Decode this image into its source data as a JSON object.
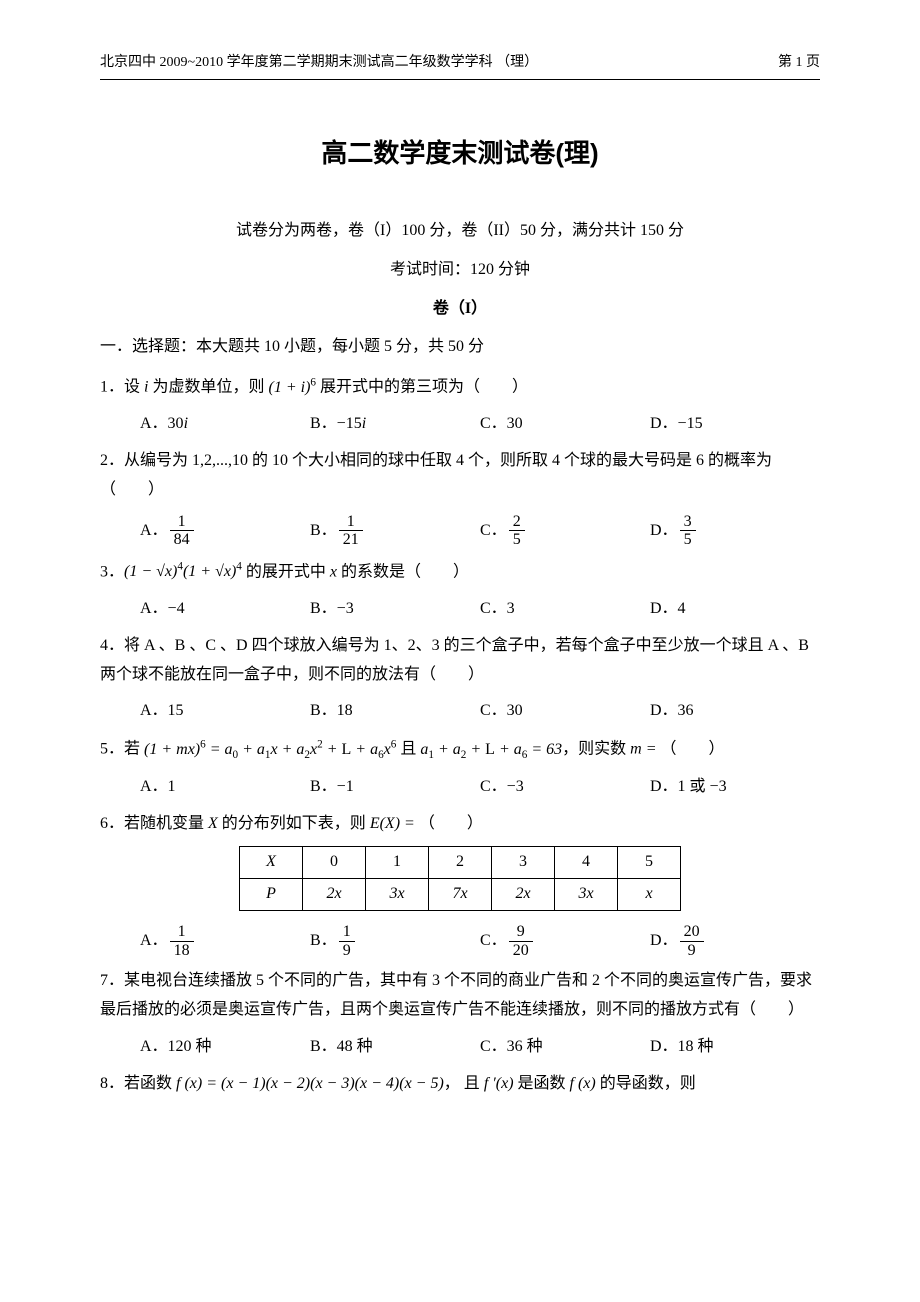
{
  "header": {
    "left": "北京四中 2009~2010 学年度第二学期期末测试高二年级数学学科 （理）",
    "right": "第 1 页"
  },
  "title": "高二数学度末测试卷(理)",
  "subtitle": "试卷分为两卷，卷（I）100 分，卷（II）50 分，满分共计 150 分",
  "exam_time": "考试时间：120 分钟",
  "juan_label": "卷（I）",
  "section1": "一．选择题：本大题共 10 小题，每小题 5 分，共 50 分",
  "q1": {
    "text_before": "1．设 ",
    "text_mid": " 为虚数单位，则 ",
    "text_after": " 展开式中的第三项为（　　）",
    "opts": {
      "A": "A．30",
      "B": "B．−15",
      "C": "C．30",
      "D": "D．−15"
    }
  },
  "q2": {
    "text": "2．从编号为 1,2,...,10 的 10 个大小相同的球中任取 4 个，则所取 4 个球的最大号码是 6 的概率为（　　）",
    "opts": {
      "A": {
        "prefix": "A．",
        "num": "1",
        "den": "84"
      },
      "B": {
        "prefix": "B．",
        "num": "1",
        "den": "21"
      },
      "C": {
        "prefix": "C．",
        "num": "2",
        "den": "5"
      },
      "D": {
        "prefix": "D．",
        "num": "3",
        "den": "5"
      }
    }
  },
  "q3": {
    "text_before": "3．",
    "text_after": " 的展开式中 ",
    "text_end": " 的系数是（　　）",
    "opts": {
      "A": "A．−4",
      "B": "B．−3",
      "C": "C．3",
      "D": "D．4"
    }
  },
  "q4": {
    "text": "4．将 A 、B 、C 、D 四个球放入编号为 1、2、3 的三个盒子中，若每个盒子中至少放一个球且 A 、B 两个球不能放在同一盒子中，则不同的放法有（　　）",
    "opts": {
      "A": "A．15",
      "B": "B．18",
      "C": "C．30",
      "D": "D．36"
    }
  },
  "q5": {
    "text_before": "5．若 ",
    "text_mid": " 且 ",
    "text_after": "，则实数 ",
    "text_end": "（　　）",
    "opts": {
      "A": "A．1",
      "B": "B．−1",
      "C": "C．−3",
      "D": "D．1 或 −3"
    }
  },
  "q6": {
    "text_before": "6．若随机变量 ",
    "text_after": " 的分布列如下表，则 ",
    "text_end": "（　　）",
    "table": {
      "row1": [
        "X",
        "0",
        "1",
        "2",
        "3",
        "4",
        "5"
      ],
      "row2": [
        "P",
        "2x",
        "3x",
        "7x",
        "2x",
        "3x",
        "x"
      ]
    },
    "opts": {
      "A": {
        "prefix": "A．",
        "num": "1",
        "den": "18"
      },
      "B": {
        "prefix": "B．",
        "num": "1",
        "den": "9"
      },
      "C": {
        "prefix": "C．",
        "num": "9",
        "den": "20"
      },
      "D": {
        "prefix": "D．",
        "num": "20",
        "den": "9"
      }
    }
  },
  "q7": {
    "text": "7．某电视台连续播放 5 个不同的广告，其中有 3 个不同的商业广告和 2 个不同的奥运宣传广告，要求最后播放的必须是奥运宣传广告，且两个奥运宣传广告不能连续播放，则不同的播放方式有（　　）",
    "opts": {
      "A": "A．120 种",
      "B": "B．48 种",
      "C": "C．36 种",
      "D": "D．18 种"
    }
  },
  "q8": {
    "text_before": "8．若函数 ",
    "text_mid": "， 且 ",
    "text_after": " 是函数 ",
    "text_end": " 的导函数，则"
  }
}
